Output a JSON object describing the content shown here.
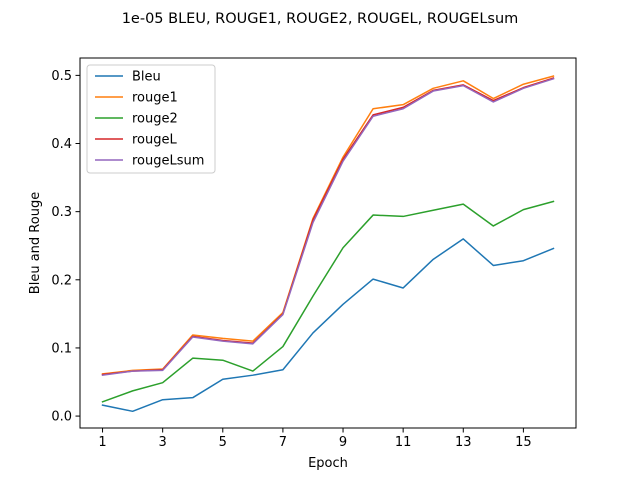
{
  "chart_data": {
    "type": "line",
    "title": "1e-05 BLEU, ROUGE1, ROUGE2, ROUGEL, ROUGELsum",
    "xlabel": "Epoch",
    "ylabel": "Bleu and Rouge",
    "x": [
      1,
      2,
      3,
      4,
      5,
      6,
      7,
      8,
      9,
      10,
      11,
      12,
      13,
      14,
      15,
      16
    ],
    "xticks": [
      1,
      3,
      5,
      7,
      9,
      11,
      13,
      15
    ],
    "yticks": [
      0.0,
      0.1,
      0.2,
      0.3,
      0.4,
      0.5
    ],
    "ytick_labels": [
      "0.0",
      "0.1",
      "0.2",
      "0.3",
      "0.4",
      "0.5"
    ],
    "xlim": [
      0.25,
      16.75
    ],
    "ylim": [
      -0.0175,
      0.5255
    ],
    "grid": false,
    "legend_position": "upper left",
    "series": [
      {
        "name": "Bleu",
        "color": "#1f77b4",
        "values": [
          0.016,
          0.007,
          0.024,
          0.027,
          0.054,
          0.06,
          0.068,
          0.122,
          0.164,
          0.201,
          0.188,
          0.23,
          0.26,
          0.221,
          0.228,
          0.246
        ]
      },
      {
        "name": "rouge1",
        "color": "#ff7f0e",
        "values": [
          0.062,
          0.067,
          0.069,
          0.119,
          0.114,
          0.11,
          0.152,
          0.29,
          0.38,
          0.451,
          0.457,
          0.481,
          0.492,
          0.466,
          0.487,
          0.499
        ]
      },
      {
        "name": "rouge2",
        "color": "#2ca02c",
        "values": [
          0.021,
          0.037,
          0.049,
          0.085,
          0.082,
          0.066,
          0.102,
          0.176,
          0.247,
          0.295,
          0.293,
          0.302,
          0.311,
          0.279,
          0.303,
          0.315
        ]
      },
      {
        "name": "rougeL",
        "color": "#d62728",
        "values": [
          0.061,
          0.066,
          0.068,
          0.117,
          0.111,
          0.107,
          0.15,
          0.288,
          0.377,
          0.442,
          0.453,
          0.478,
          0.486,
          0.463,
          0.482,
          0.496
        ]
      },
      {
        "name": "rougeLsum",
        "color": "#9467bd",
        "values": [
          0.06,
          0.066,
          0.067,
          0.116,
          0.11,
          0.106,
          0.149,
          0.284,
          0.374,
          0.44,
          0.451,
          0.477,
          0.485,
          0.461,
          0.481,
          0.495
        ]
      }
    ]
  }
}
